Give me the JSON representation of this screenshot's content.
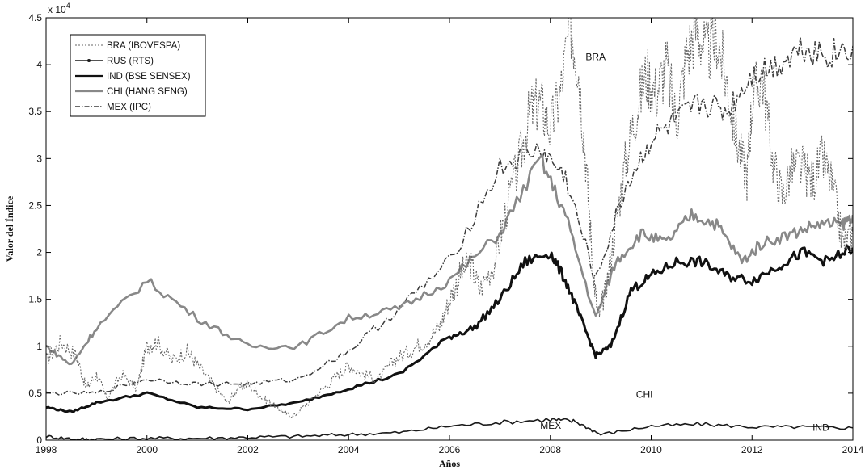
{
  "chart_data": {
    "type": "line",
    "xlabel": "Años",
    "ylabel": "Valor del Índice",
    "y_multiplier_label": "x 10",
    "y_multiplier_exp": "4",
    "xlim": [
      1998,
      2014
    ],
    "ylim": [
      0,
      4.5
    ],
    "x_ticks": [
      1998,
      2000,
      2002,
      2004,
      2006,
      2008,
      2010,
      2012,
      2014
    ],
    "y_ticks": [
      0,
      0.5,
      1,
      1.5,
      2,
      2.5,
      3,
      3.5,
      4,
      4.5
    ],
    "grid": false,
    "legend_position": "top-left",
    "series": [
      {
        "name": "BRA (IBOVESPA)",
        "style": "dotted",
        "color": "#666666",
        "x": [
          1998.0,
          1998.3,
          1998.6,
          1998.8,
          1999.0,
          1999.2,
          1999.5,
          1999.8,
          2000.0,
          2000.2,
          2000.5,
          2000.8,
          2001.0,
          2001.3,
          2001.6,
          2001.8,
          2002.0,
          2002.3,
          2002.5,
          2002.7,
          2002.9,
          2003.2,
          2003.5,
          2003.8,
          2004.0,
          2004.3,
          2004.6,
          2004.9,
          2005.2,
          2005.5,
          2005.8,
          2006.0,
          2006.2,
          2006.4,
          2006.6,
          2006.9,
          2007.1,
          2007.4,
          2007.6,
          2007.8,
          2008.0,
          2008.2,
          2008.4,
          2008.55,
          2008.7,
          2008.85,
          2008.95,
          2009.1,
          2009.3,
          2009.5,
          2009.7,
          2009.9,
          2010.1,
          2010.3,
          2010.5,
          2010.7,
          2010.9,
          2011.1,
          2011.3,
          2011.5,
          2011.7,
          2011.9,
          2012.0,
          2012.2,
          2012.4,
          2012.6,
          2012.8,
          2013.0,
          2013.2,
          2013.4,
          2013.6,
          2013.8,
          2014.0
        ],
        "values": [
          0.85,
          1.05,
          0.9,
          0.55,
          0.7,
          0.45,
          0.7,
          0.55,
          1.0,
          1.05,
          0.85,
          0.95,
          0.8,
          0.6,
          0.4,
          0.55,
          0.6,
          0.45,
          0.38,
          0.3,
          0.25,
          0.4,
          0.55,
          0.7,
          0.8,
          0.7,
          0.65,
          0.85,
          0.95,
          1.05,
          1.2,
          1.5,
          1.75,
          1.9,
          1.6,
          1.9,
          2.4,
          3.0,
          3.5,
          3.6,
          3.3,
          3.7,
          4.45,
          4.0,
          3.0,
          1.8,
          1.3,
          1.6,
          2.3,
          3.0,
          3.5,
          3.9,
          3.7,
          4.0,
          3.4,
          4.1,
          4.4,
          4.1,
          4.3,
          3.8,
          3.2,
          2.8,
          3.6,
          3.9,
          3.0,
          2.6,
          2.9,
          2.9,
          2.75,
          3.0,
          2.7,
          2.1,
          2.2
        ]
      },
      {
        "name": "RUS (RTS)",
        "style": "solid-dot",
        "color": "#1a1a1a",
        "x": [
          1998.0,
          1998.6,
          1999.0,
          2000.0,
          2001.0,
          2002.0,
          2003.0,
          2004.0,
          2005.0,
          2006.0,
          2007.0,
          2008.0,
          2008.5,
          2009.0,
          2010.0,
          2011.0,
          2012.0,
          2013.0,
          2014.0
        ],
        "values": [
          0.04,
          0.01,
          0.01,
          0.02,
          0.02,
          0.03,
          0.04,
          0.06,
          0.08,
          0.15,
          0.19,
          0.22,
          0.2,
          0.06,
          0.15,
          0.17,
          0.14,
          0.14,
          0.13
        ]
      },
      {
        "name": "IND (BSE SENSEX)",
        "style": "solid-thick",
        "color": "#111111",
        "x": [
          1998.0,
          1998.5,
          1999.0,
          2000.0,
          2001.0,
          2002.0,
          2003.0,
          2004.0,
          2005.0,
          2006.0,
          2006.5,
          2007.0,
          2007.5,
          2008.0,
          2008.3,
          2008.6,
          2008.9,
          2009.2,
          2009.6,
          2010.0,
          2010.5,
          2011.0,
          2011.5,
          2012.0,
          2012.5,
          2013.0,
          2013.5,
          2014.0
        ],
        "values": [
          0.35,
          0.3,
          0.4,
          0.5,
          0.35,
          0.33,
          0.4,
          0.55,
          0.7,
          1.1,
          1.2,
          1.5,
          1.9,
          2.0,
          1.7,
          1.3,
          0.9,
          1.0,
          1.6,
          1.75,
          1.9,
          1.9,
          1.75,
          1.7,
          1.85,
          2.0,
          1.9,
          2.05
        ]
      },
      {
        "name": "CHI (HANG SENG)",
        "style": "solid-light",
        "color": "#888888",
        "x": [
          1998.0,
          1998.5,
          1999.0,
          2000.0,
          2001.0,
          2002.0,
          2003.0,
          2004.0,
          2005.0,
          2006.0,
          2007.0,
          2007.8,
          2008.3,
          2008.9,
          2009.3,
          2009.8,
          2010.3,
          2010.8,
          2011.3,
          2011.8,
          2012.2,
          2012.8,
          2013.3,
          2013.8,
          2014.0
        ],
        "values": [
          1.0,
          0.8,
          1.2,
          1.7,
          1.3,
          1.0,
          1.0,
          1.3,
          1.4,
          1.7,
          2.2,
          3.0,
          2.4,
          1.3,
          1.9,
          2.2,
          2.1,
          2.4,
          2.3,
          1.9,
          2.1,
          2.2,
          2.3,
          2.3,
          2.4
        ]
      },
      {
        "name": "MEX (IPC)",
        "style": "dashdot",
        "color": "#3a3a3a",
        "x": [
          1998.0,
          1999.0,
          2000.0,
          2001.0,
          2002.0,
          2003.0,
          2004.0,
          2005.0,
          2006.0,
          2007.0,
          2007.8,
          2008.3,
          2008.9,
          2009.5,
          2010.0,
          2010.5,
          2011.0,
          2011.5,
          2012.0,
          2012.5,
          2013.0,
          2013.5,
          2014.0
        ],
        "values": [
          0.5,
          0.5,
          0.65,
          0.6,
          0.6,
          0.65,
          0.95,
          1.4,
          1.9,
          2.9,
          3.1,
          2.8,
          1.7,
          2.7,
          3.2,
          3.4,
          3.6,
          3.5,
          3.9,
          4.0,
          4.2,
          4.1,
          4.2
        ]
      }
    ],
    "annotations": [
      {
        "text": "BRA",
        "x": 2008.7,
        "y": 4.05
      },
      {
        "text": "CHI",
        "x": 2009.7,
        "y": 0.45
      },
      {
        "text": "MEX",
        "x": 2007.8,
        "y": 0.12
      },
      {
        "text": "IND",
        "x": 2013.2,
        "y": 0.1
      }
    ]
  }
}
